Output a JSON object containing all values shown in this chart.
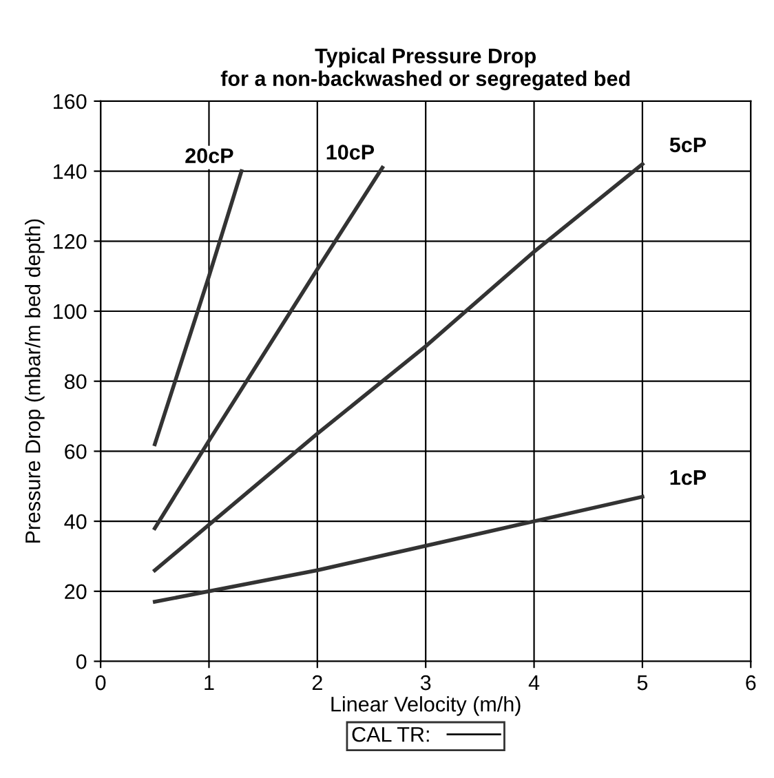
{
  "chart_data": {
    "type": "line",
    "title": "Typical Pressure Drop\nfor a non-backwashed or segregated bed",
    "xlabel": "Linear Velocity (m/h)",
    "ylabel": "Pressure Drop (mbar/m bed depth)",
    "xlim": [
      0,
      6
    ],
    "xticks": [
      0,
      1,
      2,
      3,
      4,
      5,
      6
    ],
    "ylim": [
      0,
      160
    ],
    "yticks": [
      0,
      20,
      40,
      60,
      80,
      100,
      120,
      140,
      160
    ],
    "grid": true,
    "legend_title": "CAL TR:",
    "series": [
      {
        "x": [
          0.5,
          1,
          1.3
        ],
        "values": [
          62,
          110,
          140
        ],
        "color": "#333333"
      },
      {
        "x": [
          0.5,
          1,
          2,
          2.6
        ],
        "values": [
          38,
          63,
          112,
          141
        ],
        "color": "#333333"
      },
      {
        "x": [
          0.5,
          1,
          2,
          3,
          4,
          5
        ],
        "values": [
          26,
          39,
          65,
          90,
          117,
          142
        ],
        "color": "#333333"
      },
      {
        "x": [
          0.5,
          1,
          2,
          3,
          4,
          5
        ],
        "values": [
          17,
          20,
          26,
          33,
          40,
          47
        ],
        "color": "#333333"
      }
    ],
    "annotations": [
      {
        "text": "20cP",
        "x": 1.3,
        "y": 140
      },
      {
        "text": "10cP",
        "x": 2.6,
        "y": 141
      },
      {
        "text": "5cP",
        "x": 5,
        "y": 142
      },
      {
        "text": "1cP",
        "x": 5,
        "y": 47
      }
    ]
  }
}
